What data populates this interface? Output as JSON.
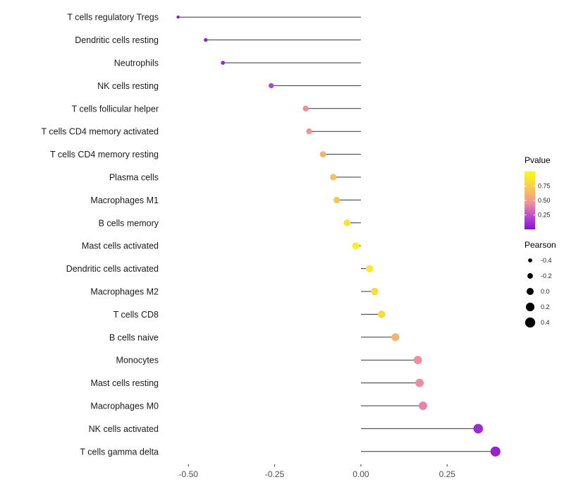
{
  "chart_data": {
    "type": "scatter",
    "variant": "lollipop-horizontal",
    "title": "",
    "xlabel": "",
    "ylabel": "",
    "grid": false,
    "background": "#ffffff",
    "xlim": [
      -0.57,
      0.46
    ],
    "x_ticks": [
      -0.5,
      -0.25,
      0,
      0.25
    ],
    "x_tick_labels": [
      "-0.50",
      "-0.25",
      "0.00",
      "0.25"
    ],
    "points": [
      {
        "category": "T cells regulatory Tregs",
        "pearson": -0.53,
        "pvalue": 0.03
      },
      {
        "category": "Dendritic cells resting",
        "pearson": -0.45,
        "pvalue": 0.05
      },
      {
        "category": "Neutrophils",
        "pearson": -0.4,
        "pvalue": 0.08
      },
      {
        "category": "NK cells resting",
        "pearson": -0.26,
        "pvalue": 0.2
      },
      {
        "category": "T cells follicular helper",
        "pearson": -0.16,
        "pvalue": 0.45
      },
      {
        "category": "T cells CD4 memory activated",
        "pearson": -0.15,
        "pvalue": 0.48
      },
      {
        "category": "T cells CD4 memory resting",
        "pearson": -0.11,
        "pvalue": 0.6
      },
      {
        "category": "Plasma cells",
        "pearson": -0.08,
        "pvalue": 0.68
      },
      {
        "category": "Macrophages M1",
        "pearson": -0.07,
        "pvalue": 0.7
      },
      {
        "category": "B cells memory",
        "pearson": -0.04,
        "pvalue": 0.85
      },
      {
        "category": "Mast cells activated",
        "pearson": -0.015,
        "pvalue": 0.92
      },
      {
        "category": "Dendritic cells activated",
        "pearson": 0.025,
        "pvalue": 0.88
      },
      {
        "category": "Macrophages M2",
        "pearson": 0.04,
        "pvalue": 0.82
      },
      {
        "category": "T cells CD8",
        "pearson": 0.06,
        "pvalue": 0.8
      },
      {
        "category": "B cells naive",
        "pearson": 0.1,
        "pvalue": 0.62
      },
      {
        "category": "Monocytes",
        "pearson": 0.165,
        "pvalue": 0.45
      },
      {
        "category": "Mast cells resting",
        "pearson": 0.17,
        "pvalue": 0.44
      },
      {
        "category": "Macrophages M0",
        "pearson": 0.18,
        "pvalue": 0.42
      },
      {
        "category": "NK cells activated",
        "pearson": 0.34,
        "pvalue": 0.1
      },
      {
        "category": "T cells gamma delta",
        "pearson": 0.39,
        "pvalue": 0.07
      }
    ],
    "legend": {
      "position": "right",
      "pvalue": {
        "title": "Pvalue",
        "range": [
          0,
          1
        ],
        "ticks": [
          0.75,
          0.5,
          0.25
        ],
        "tick_labels": [
          "0.75",
          "0.50",
          "0.25"
        ],
        "gradient_stops": [
          [
            0.0,
            "#8912C9"
          ],
          [
            0.15,
            "#A637D6"
          ],
          [
            0.3,
            "#CC5FC2"
          ],
          [
            0.45,
            "#EE8F9C"
          ],
          [
            0.6,
            "#F5B172"
          ],
          [
            0.75,
            "#F7CE4E"
          ],
          [
            0.9,
            "#F8EC2A"
          ],
          [
            1.0,
            "#F7FA18"
          ]
        ]
      },
      "pearson": {
        "title": "Pearson",
        "values": [
          -0.4,
          -0.2,
          0.0,
          0.2,
          0.4
        ],
        "tick_labels": [
          "-0.4",
          "-0.2",
          "0.0",
          "0.2",
          "0.4"
        ],
        "dot_color": "#000000",
        "domain": [
          -0.55,
          0.45
        ]
      }
    }
  }
}
